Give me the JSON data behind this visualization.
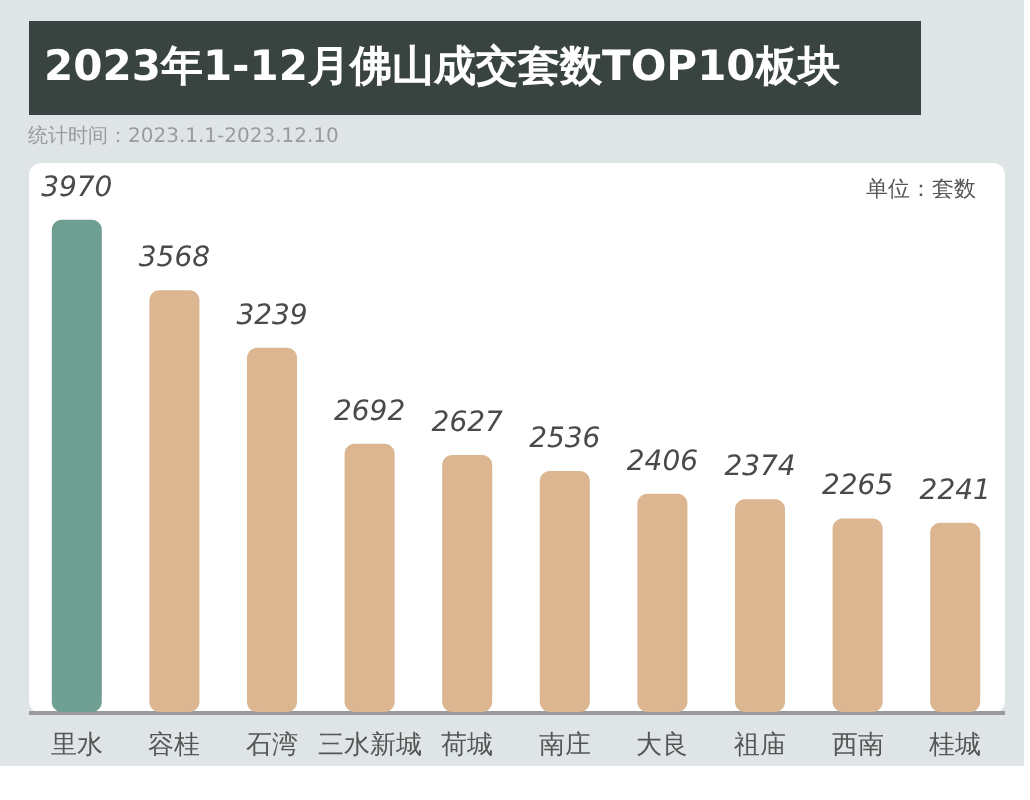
{
  "chart_data": {
    "type": "bar",
    "title": "2023年1-12月佛山成交套数TOP10板块",
    "subtitle": "统计时间：2023.1.1-2023.12.10",
    "categories": [
      "里水",
      "容桂",
      "石湾",
      "三水新城",
      "荷城",
      "南庄",
      "大良",
      "祖庙",
      "西南",
      "桂城"
    ],
    "values": [
      3970,
      3568,
      3239,
      2692,
      2627,
      2536,
      2406,
      2374,
      2265,
      2241
    ],
    "colors": [
      "#6f9f92",
      "#dcb690",
      "#dcb690",
      "#dcb690",
      "#dcb690",
      "#dcb690",
      "#dcb690",
      "#dcb690",
      "#dcb690",
      "#dcb690"
    ],
    "ylim": [
      1160,
      4300
    ],
    "data_labels": true,
    "annotations": [
      "单位：套数"
    ]
  }
}
